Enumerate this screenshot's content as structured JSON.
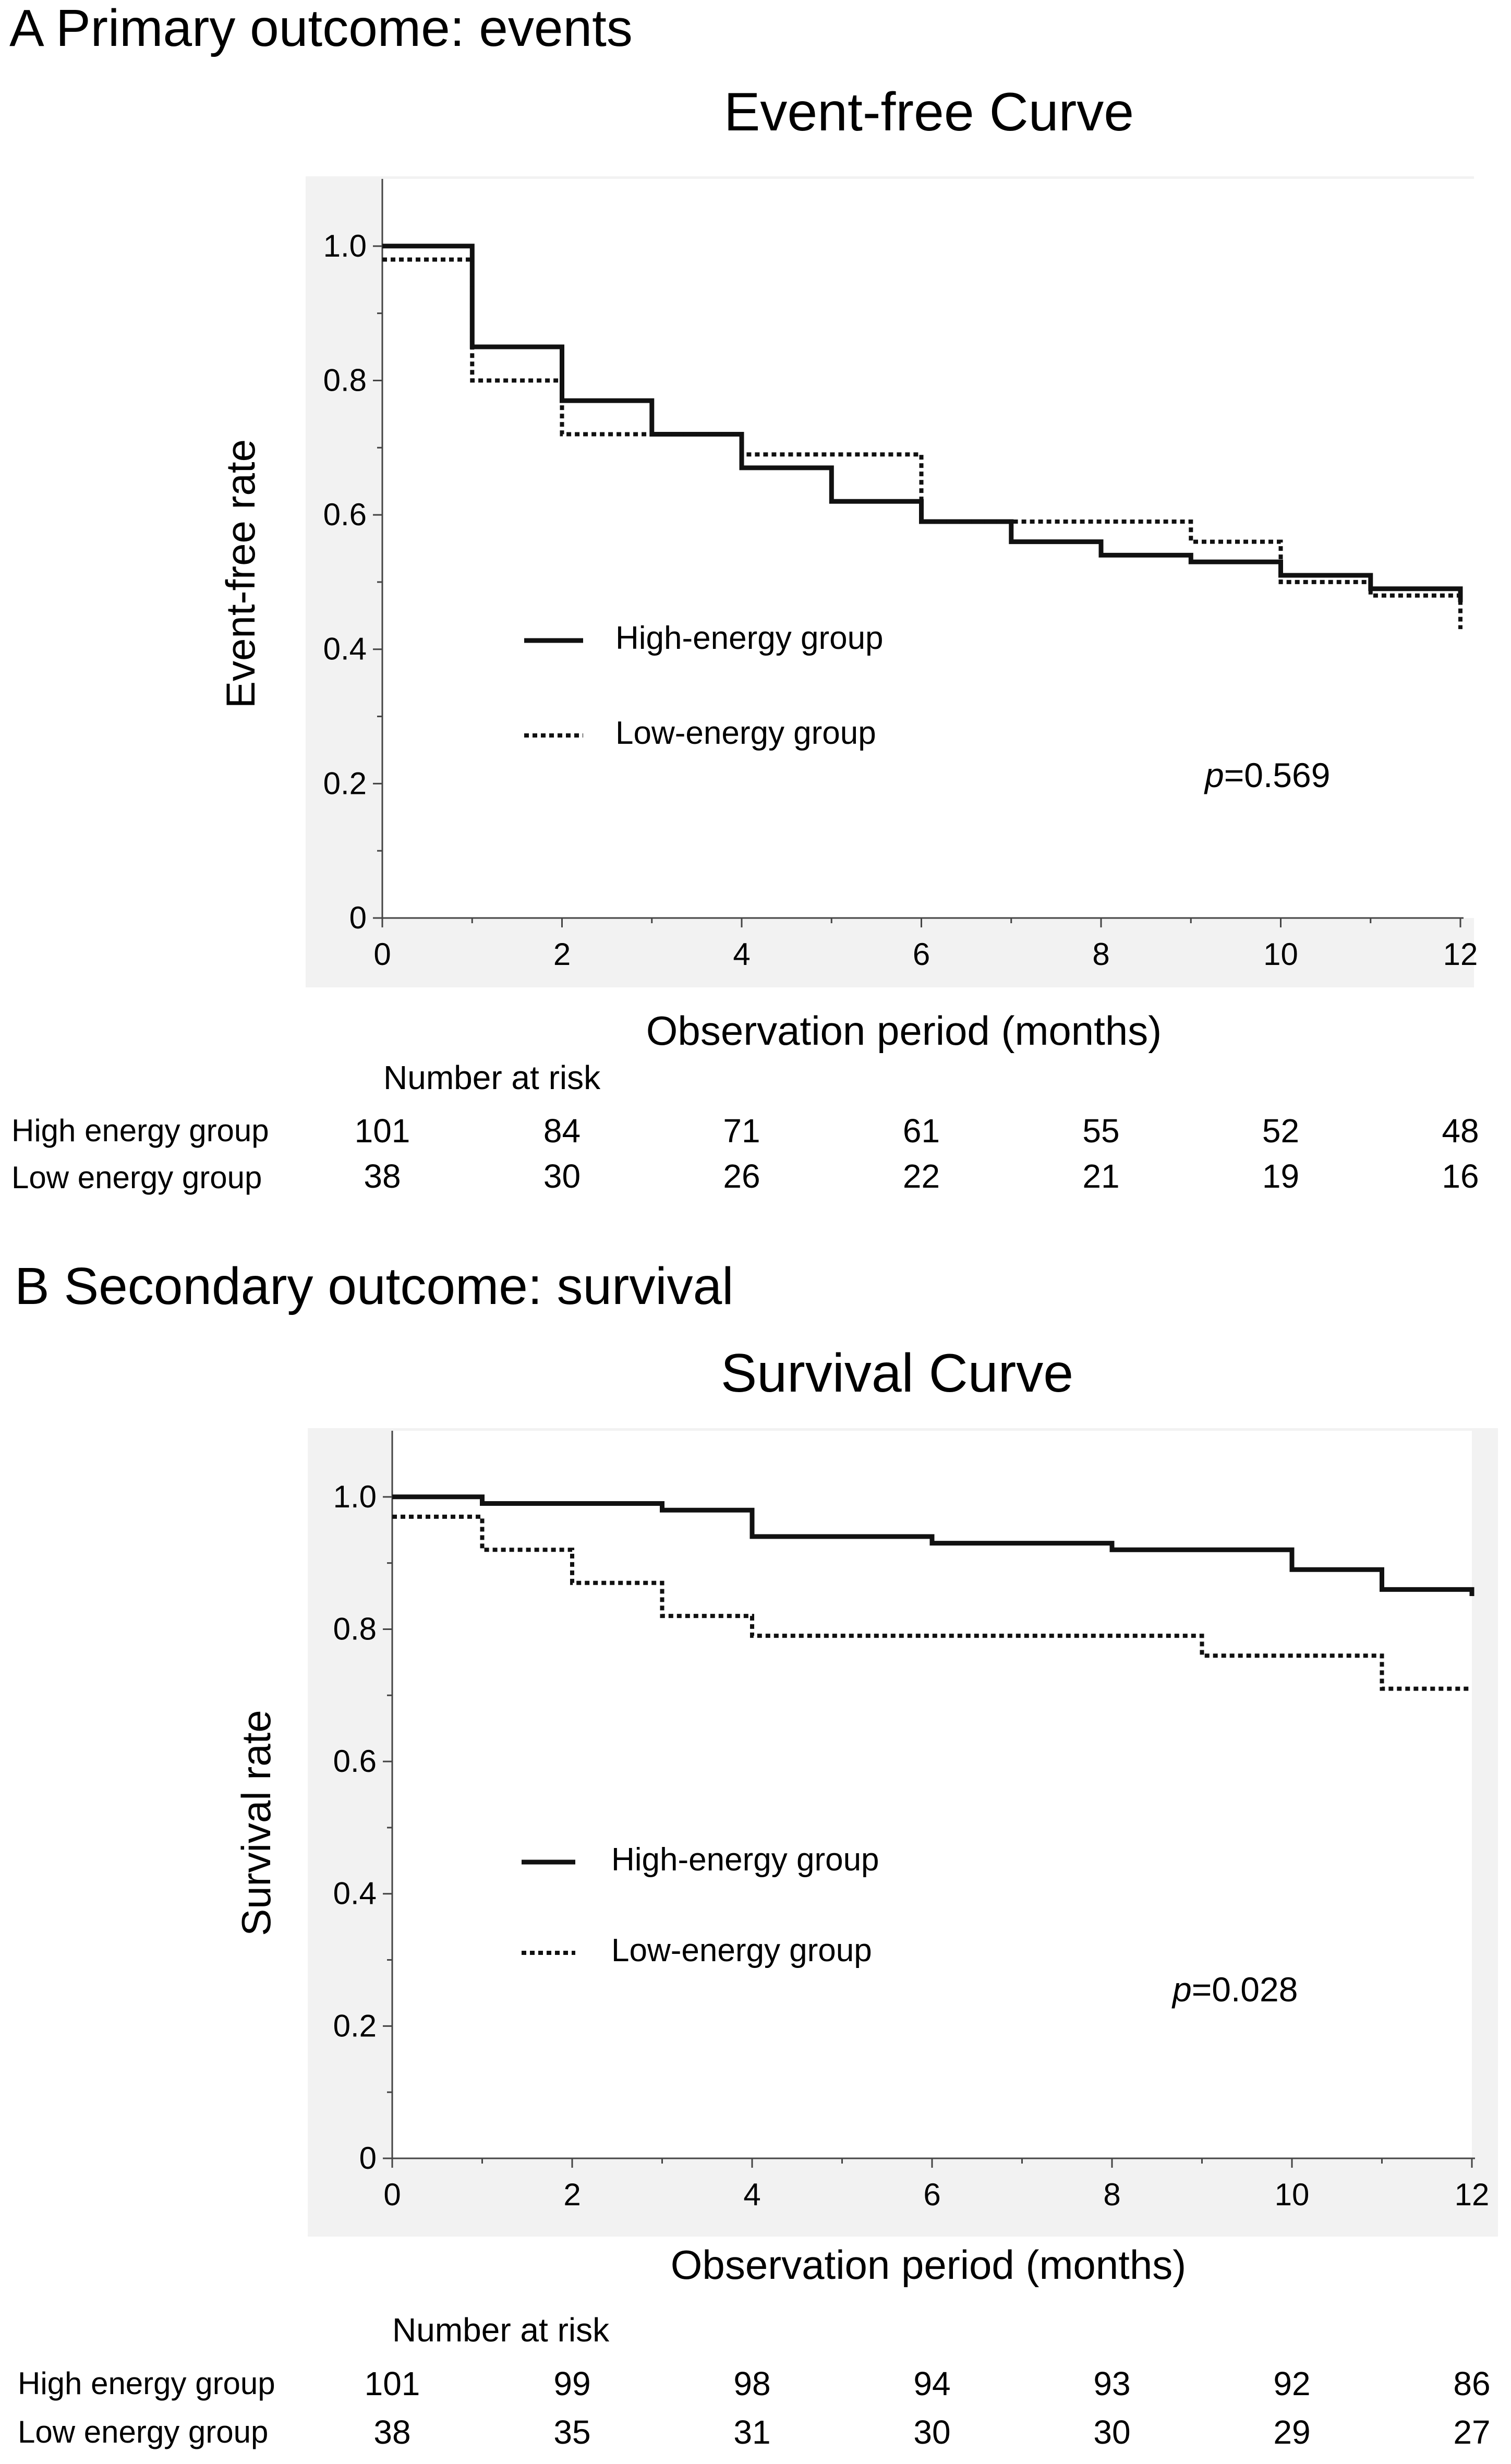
{
  "panels": [
    {
      "panel_title": "A Primary outcome: events",
      "risk_table": {
        "header": "Number at risk",
        "rows": [
          {
            "label": "High energy group",
            "values": [
              "101",
              "84",
              "71",
              "61",
              "55",
              "52",
              "48"
            ]
          },
          {
            "label": "Low energy group",
            "values": [
              "38",
              "30",
              "26",
              "22",
              "21",
              "19",
              "16"
            ]
          }
        ]
      }
    },
    {
      "panel_title": "B Secondary outcome: survival",
      "risk_table": {
        "header": "Number at risk",
        "rows": [
          {
            "label": "High energy group",
            "values": [
              "101",
              "99",
              "98",
              "94",
              "93",
              "92",
              "86"
            ]
          },
          {
            "label": "Low energy group",
            "values": [
              "38",
              "35",
              "31",
              "30",
              "30",
              "29",
              "27"
            ]
          }
        ]
      }
    }
  ],
  "chart_data": [
    {
      "type": "line",
      "step": true,
      "title": "Event-free Curve",
      "xlabel": "Observation period (months)",
      "ylabel": "Event-free rate",
      "xlim": [
        0,
        12
      ],
      "ylim": [
        0,
        1.1
      ],
      "xticks": [
        "0",
        "2",
        "4",
        "6",
        "8",
        "10",
        "12"
      ],
      "yticks": [
        "0",
        "0.2",
        "0.4",
        "0.6",
        "0.8",
        "1.0"
      ],
      "legend_position": "center-left",
      "annotation": {
        "italic": "p",
        "text": "=0.569"
      },
      "series": [
        {
          "name": "High-energy group",
          "style": "solid",
          "x": [
            0,
            1,
            2,
            3,
            4,
            5,
            6,
            7,
            8,
            9,
            10,
            11,
            12
          ],
          "values": [
            1.0,
            0.85,
            0.77,
            0.72,
            0.67,
            0.62,
            0.59,
            0.56,
            0.54,
            0.53,
            0.51,
            0.49,
            0.47
          ]
        },
        {
          "name": "Low-energy group",
          "style": "dotted",
          "x": [
            0,
            1,
            2,
            4,
            6,
            9,
            10,
            11,
            12
          ],
          "values": [
            0.98,
            0.8,
            0.72,
            0.69,
            0.59,
            0.56,
            0.5,
            0.48,
            0.43
          ]
        }
      ]
    },
    {
      "type": "line",
      "step": true,
      "title": "Survival Curve",
      "xlabel": "Observation period (months)",
      "ylabel": "Survival rate",
      "xlim": [
        0,
        12
      ],
      "ylim": [
        0,
        1.1
      ],
      "xticks": [
        "0",
        "2",
        "4",
        "6",
        "8",
        "10",
        "12"
      ],
      "yticks": [
        "0",
        "0.2",
        "0.4",
        "0.6",
        "0.8",
        "1.0"
      ],
      "legend_position": "center-left",
      "annotation": {
        "italic": "p",
        "text": "=0.028"
      },
      "series": [
        {
          "name": "High-energy group",
          "style": "solid",
          "x": [
            0,
            1,
            3,
            4,
            6,
            8,
            10,
            11,
            12
          ],
          "values": [
            1.0,
            0.99,
            0.98,
            0.94,
            0.93,
            0.92,
            0.89,
            0.86,
            0.85
          ]
        },
        {
          "name": "Low-energy group",
          "style": "dotted",
          "x": [
            0,
            1,
            2,
            3,
            4,
            9,
            11,
            12
          ],
          "values": [
            0.97,
            0.92,
            0.87,
            0.82,
            0.79,
            0.76,
            0.71,
            0.71
          ]
        }
      ]
    }
  ]
}
